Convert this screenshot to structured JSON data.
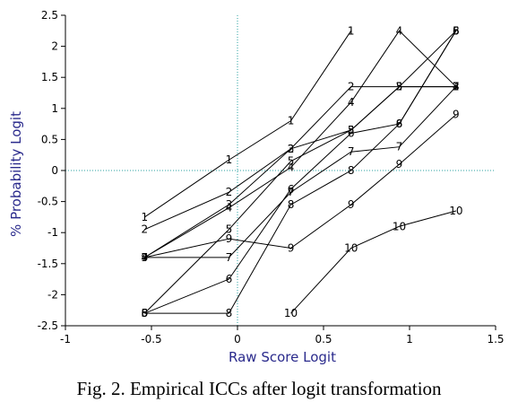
{
  "caption": "Fig. 2.  Empirical ICCs after logit transformation",
  "chart_data": {
    "type": "line",
    "xlabel": "Raw Score Logit",
    "ylabel": "% Probability Logit",
    "xlim": [
      -1,
      1.5
    ],
    "ylim": [
      -2.5,
      2.5
    ],
    "x_ticks": [
      -1,
      -0.5,
      0,
      0.5,
      1,
      1.5
    ],
    "y_ticks": [
      -2.5,
      -2,
      -1.5,
      -1,
      -0.5,
      0,
      0.5,
      1,
      1.5,
      2,
      2.5
    ],
    "x_tick_labels": [
      "-1",
      "-0.5",
      "0",
      "0.5",
      "1",
      "1.5"
    ],
    "y_tick_labels": [
      "-2.5",
      "-2",
      "-1.5",
      "-1",
      "-0.5",
      "0",
      "0.5",
      "1",
      "1.5",
      "2",
      "2.5"
    ],
    "reference_lines": {
      "x": 0,
      "y": 0,
      "style": "dotted",
      "color": "#2aa0a0"
    },
    "line_color": "#000000",
    "x": [
      -0.54,
      -0.05,
      0.31,
      0.66,
      0.94,
      1.27
    ],
    "series": [
      {
        "marker": "1",
        "values": [
          -0.75,
          0.17,
          0.8,
          2.25,
          null,
          null
        ]
      },
      {
        "marker": "2",
        "values": [
          -0.95,
          -0.35,
          0.35,
          1.35,
          1.35,
          1.35
        ]
      },
      {
        "marker": "3",
        "values": [
          -1.4,
          -0.55,
          0.35,
          0.65,
          1.35,
          1.35
        ]
      },
      {
        "marker": "4",
        "values": [
          -1.4,
          -0.6,
          0.05,
          1.1,
          2.25,
          1.35
        ]
      },
      {
        "marker": "5",
        "values": [
          -2.3,
          -0.95,
          0.15,
          0.65,
          1.35,
          2.25
        ]
      },
      {
        "marker": "6",
        "values": [
          -2.3,
          -1.75,
          -0.3,
          0.6,
          0.75,
          2.25
        ]
      },
      {
        "marker": "7",
        "values": [
          -1.4,
          -1.4,
          -0.35,
          0.3,
          0.38,
          1.35
        ]
      },
      {
        "marker": "8",
        "values": [
          -2.3,
          -2.3,
          -0.55,
          0.0,
          0.75,
          2.25
        ]
      },
      {
        "marker": "9",
        "values": [
          -1.4,
          -1.1,
          -1.25,
          -0.55,
          0.1,
          0.9
        ]
      },
      {
        "marker": "10",
        "values": [
          null,
          null,
          -2.3,
          -1.25,
          -0.9,
          -0.65
        ]
      }
    ]
  }
}
